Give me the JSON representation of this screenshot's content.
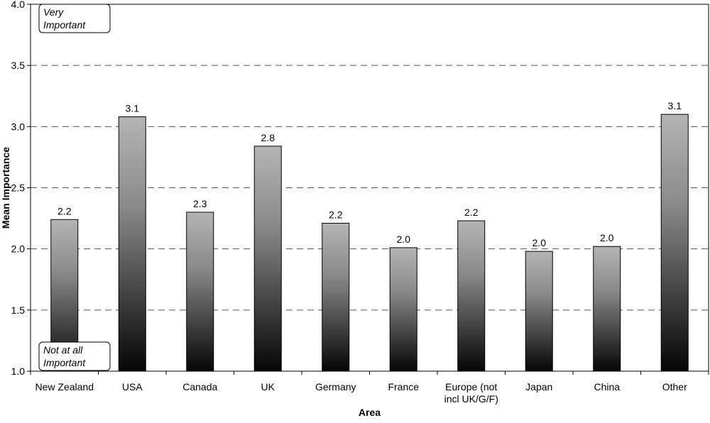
{
  "chart_data": {
    "type": "bar",
    "title": "",
    "xlabel": "Area",
    "ylabel": "Mean Importance",
    "ylim": [
      1.0,
      4.0
    ],
    "yticks": [
      "1.0",
      "1.5",
      "2.0",
      "2.5",
      "3.0",
      "3.5",
      "4.0"
    ],
    "grid": "horizontal dashed",
    "legend": "none",
    "categories": [
      [
        "New Zealand"
      ],
      [
        "USA"
      ],
      [
        "Canada"
      ],
      [
        "UK"
      ],
      [
        "Germany"
      ],
      [
        "France"
      ],
      [
        "Europe (not",
        "incl UK/G/F)"
      ],
      [
        "Japan"
      ],
      [
        "China"
      ],
      [
        "Other"
      ]
    ],
    "values": [
      2.24,
      3.08,
      2.3,
      2.84,
      2.21,
      2.01,
      2.23,
      1.98,
      2.02,
      3.1
    ],
    "data_labels": [
      "2.2",
      "3.1",
      "2.3",
      "2.8",
      "2.2",
      "2.0",
      "2.2",
      "2.0",
      "2.0",
      "3.1"
    ],
    "annotations": {
      "top": [
        "Very",
        "Important"
      ],
      "bottom": [
        "Not at all",
        "Important"
      ]
    },
    "colors": {
      "bar_top": "#b4b4b4",
      "bar_bottom": "#050505",
      "gridline": "#555555",
      "axis": "#000000"
    }
  }
}
